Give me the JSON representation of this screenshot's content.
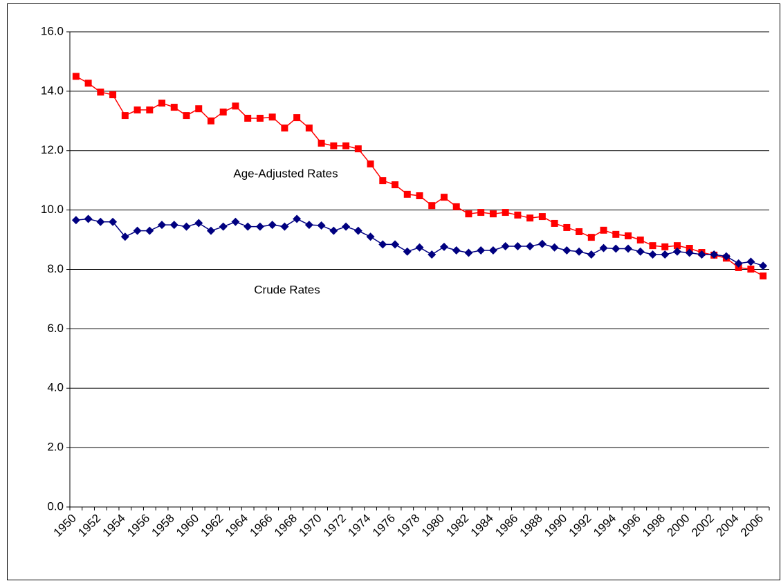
{
  "chart_data": {
    "type": "line",
    "categories": [
      "1950",
      null,
      "1952",
      null,
      "1954",
      null,
      "1956",
      null,
      "1958",
      null,
      "1960",
      null,
      "1962",
      null,
      "1964",
      null,
      "1966",
      null,
      "1968",
      null,
      "1970",
      null,
      "1972",
      null,
      "1974",
      null,
      "1976",
      null,
      "1978",
      null,
      "1980",
      null,
      "1982",
      null,
      "1984",
      null,
      "1986",
      null,
      "1988",
      null,
      "1990",
      null,
      "1992",
      null,
      "1994",
      null,
      "1996",
      null,
      "1998",
      null,
      "2000",
      null,
      "2002",
      null,
      "2004",
      null,
      "2006"
    ],
    "series": [
      {
        "name": "Age-Adjusted Rates",
        "color": "#ff0000",
        "marker": "square",
        "values": [
          14.5,
          14.27,
          13.97,
          13.88,
          13.18,
          13.37,
          13.37,
          13.6,
          13.46,
          13.18,
          13.41,
          13.0,
          13.3,
          13.5,
          13.09,
          13.09,
          13.13,
          12.76,
          13.11,
          12.76,
          12.25,
          12.16,
          12.16,
          12.06,
          11.55,
          10.99,
          10.85,
          10.53,
          10.48,
          10.15,
          10.43,
          10.11,
          9.87,
          9.92,
          9.87,
          9.92,
          9.83,
          9.73,
          9.78,
          9.55,
          9.41,
          9.27,
          9.08,
          9.32,
          9.18,
          9.13,
          8.99,
          8.8,
          8.76,
          8.8,
          8.71,
          8.57,
          8.48,
          8.38,
          8.06,
          8.01,
          7.78
        ]
      },
      {
        "name": "Crude Rates",
        "color": "#000080",
        "marker": "diamond",
        "values": [
          9.66,
          9.7,
          9.6,
          9.6,
          9.1,
          9.3,
          9.3,
          9.5,
          9.5,
          9.44,
          9.56,
          9.3,
          9.44,
          9.6,
          9.44,
          9.44,
          9.5,
          9.44,
          9.7,
          9.5,
          9.48,
          9.3,
          9.44,
          9.3,
          9.1,
          8.84,
          8.84,
          8.6,
          8.74,
          8.5,
          8.76,
          8.64,
          8.56,
          8.64,
          8.64,
          8.78,
          8.78,
          8.78,
          8.86,
          8.74,
          8.64,
          8.6,
          8.5,
          8.72,
          8.7,
          8.7,
          8.6,
          8.5,
          8.5,
          8.6,
          8.56,
          8.5,
          8.5,
          8.44,
          8.2,
          8.26,
          8.12
        ]
      }
    ],
    "ylim": [
      0,
      16
    ],
    "yticks": [
      {
        "value": 0,
        "label": "0.0"
      },
      {
        "value": 2,
        "label": "2.0"
      },
      {
        "value": 4,
        "label": "4.0"
      },
      {
        "value": 6,
        "label": "6.0"
      },
      {
        "value": 8,
        "label": "8.0"
      },
      {
        "value": 10,
        "label": "10.0"
      },
      {
        "value": 12,
        "label": "12.0"
      },
      {
        "value": 14,
        "label": "14.0"
      },
      {
        "value": 16,
        "label": "16.0"
      }
    ],
    "grid": true
  }
}
